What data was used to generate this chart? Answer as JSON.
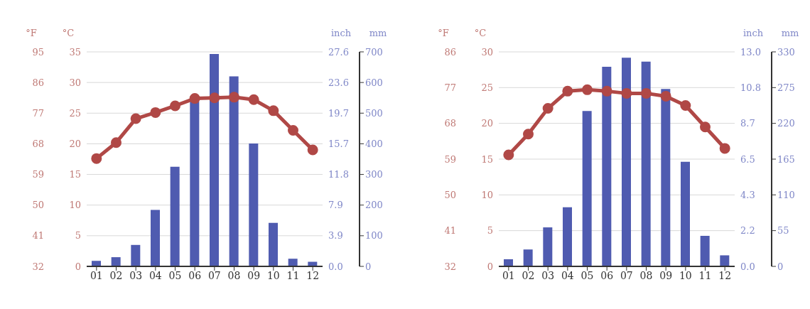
{
  "chart_data": [
    {
      "type": "bar",
      "categories": [
        "01",
        "02",
        "03",
        "04",
        "05",
        "06",
        "07",
        "08",
        "09",
        "10",
        "11",
        "12"
      ],
      "ylabel": "°C",
      "y2label": "mm",
      "y3label": "°F",
      "ylim": [
        0,
        35
      ],
      "yticks": [
        0,
        5,
        10,
        15,
        20,
        25,
        30,
        35
      ],
      "y2lim": [
        0,
        700
      ],
      "y2ticks": [
        0,
        100,
        200,
        300,
        400,
        500,
        600,
        700
      ],
      "y3lim": [
        32,
        95
      ],
      "y3ticks": [
        32,
        41,
        50,
        59,
        68,
        77,
        86,
        95
      ],
      "annotations": [
        "inch",
        "0.0",
        "3.9",
        "7.9",
        "11.8",
        "15.7",
        "19.7",
        "23.6",
        "27.6"
      ],
      "grid": "y",
      "marker": "circle",
      "series": [
        {
          "axis": "y2",
          "color": "#4f5bb0",
          "values": [
            18,
            30,
            70,
            184,
            325,
            539,
            693,
            620,
            401,
            142,
            25,
            15
          ]
        },
        {
          "type": "line",
          "axis": "y",
          "color": "#b04846",
          "values": [
            17.6,
            20.2,
            24.1,
            25.1,
            26.2,
            27.4,
            27.5,
            27.6,
            27.2,
            25.4,
            22.2,
            19.0
          ]
        }
      ]
    },
    {
      "type": "bar",
      "categories": [
        "01",
        "02",
        "03",
        "04",
        "05",
        "06",
        "07",
        "08",
        "09",
        "10",
        "11",
        "12"
      ],
      "ylabel": "°C",
      "y2label": "mm",
      "y3label": "°F",
      "ylim": [
        0,
        30
      ],
      "yticks": [
        0,
        5,
        10,
        15,
        20,
        25,
        30
      ],
      "y2lim": [
        0,
        330
      ],
      "y2ticks": [
        0,
        55,
        110,
        165,
        220,
        275,
        330
      ],
      "y3lim": [
        32,
        86
      ],
      "y3ticks": [
        32,
        41,
        50,
        59,
        68,
        77,
        86
      ],
      "annotations": [
        "inch",
        "0.0",
        "2.2",
        "4.3",
        "6.5",
        "8.7",
        "10.8",
        "13.0"
      ],
      "grid": "y",
      "marker": "circle",
      "series": [
        {
          "axis": "y2",
          "color": "#4f5bb0",
          "values": [
            11,
            26,
            60,
            91,
            239,
            307,
            321,
            315,
            273,
            161,
            47,
            17
          ]
        },
        {
          "type": "line",
          "axis": "y",
          "color": "#b04846",
          "values": [
            15.6,
            18.5,
            22.1,
            24.5,
            24.7,
            24.5,
            24.2,
            24.2,
            23.8,
            22.5,
            19.5,
            16.5
          ]
        }
      ]
    }
  ]
}
